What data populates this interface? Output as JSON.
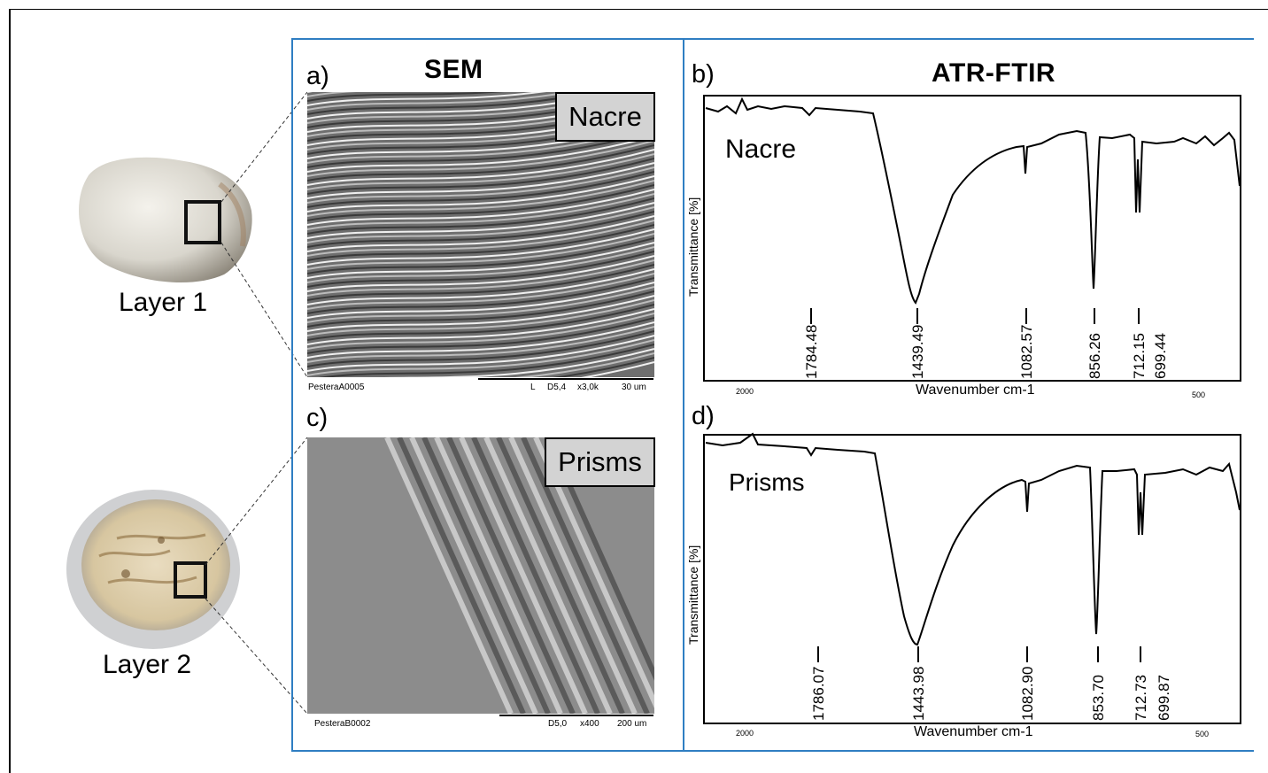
{
  "shells": {
    "layer1_label": "Layer 1",
    "layer2_label": "Layer 2"
  },
  "sem": {
    "heading": "SEM",
    "panel_a": {
      "letter": "a)",
      "tag": "Nacre",
      "footer_left": "PesteraA0005",
      "footer_mode": "L",
      "footer_d": "D5,4",
      "footer_mag": "x3,0k",
      "footer_scale": "30 um"
    },
    "panel_c": {
      "letter": "c)",
      "tag": "Prisms",
      "footer_left": "PesteraB0002",
      "footer_d": "D5,0",
      "footer_mag": "x400",
      "footer_scale": "200 um"
    }
  },
  "ftir": {
    "heading": "ATR-FTIR",
    "panel_b": {
      "letter": "b)",
      "sample": "Nacre",
      "ylabel": "Transmittance [%]",
      "xlabel": "Wavenumber cm-1",
      "tick_left": "2000",
      "tick_right": "500",
      "peaks": [
        "1784.48",
        "1439.49",
        "1082.57",
        "856.26",
        "712.15",
        "699.44"
      ]
    },
    "panel_d": {
      "letter": "d)",
      "sample": "Prisms",
      "ylabel": "Transmittance [%]",
      "xlabel": "Wavenumber cm-1",
      "tick_left": "2000",
      "tick_right": "500",
      "peaks": [
        "1786.07",
        "1443.98",
        "1082.90",
        "853.70",
        "712.73",
        "699.87"
      ]
    }
  },
  "colors": {
    "panel_border": "#2f7ec2",
    "tag_fill": "#d3d3d3"
  }
}
